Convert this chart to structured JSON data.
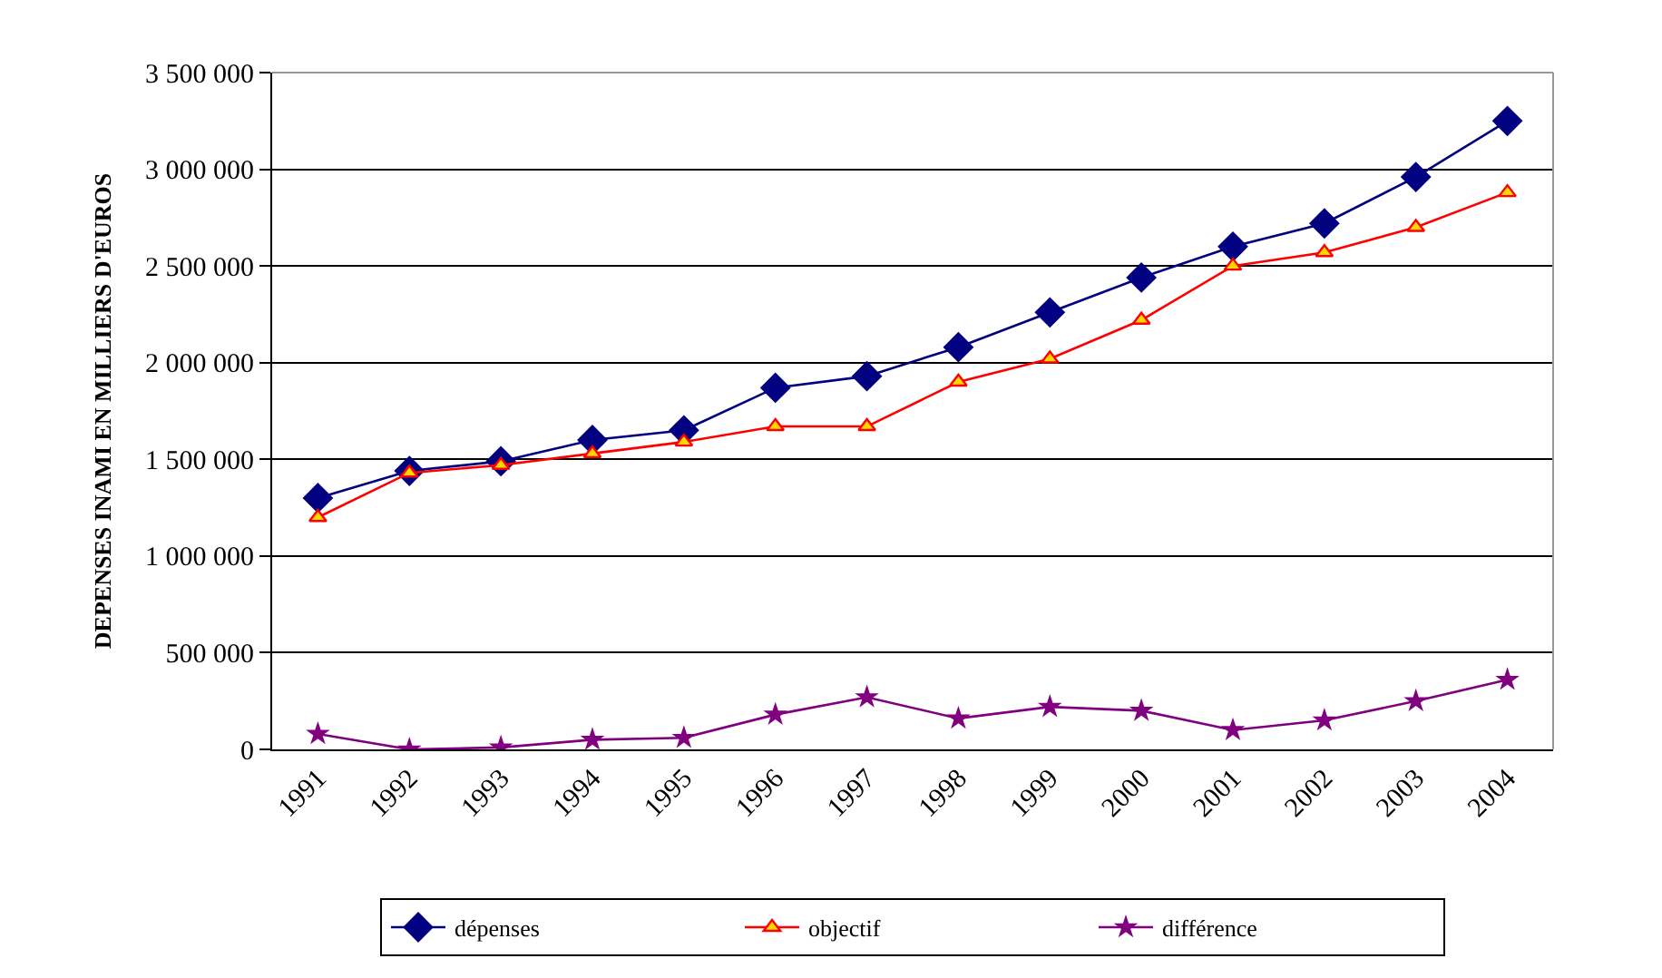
{
  "chart_data": {
    "type": "line",
    "ylabel": "DEPENSES INAMI EN MILLIERS D'EUROS",
    "categories": [
      "1991",
      "1992",
      "1993",
      "1994",
      "1995",
      "1996",
      "1997",
      "1998",
      "1999",
      "2000",
      "2001",
      "2002",
      "2003",
      "2004"
    ],
    "series": [
      {
        "name": "dépenses",
        "color": "#000080",
        "marker": "diamond",
        "values": [
          1300000,
          1440000,
          1490000,
          1600000,
          1650000,
          1870000,
          1930000,
          2080000,
          2260000,
          2440000,
          2600000,
          2720000,
          2960000,
          3250000
        ]
      },
      {
        "name": "objectif",
        "color": "#ff0000",
        "marker": "triangle",
        "values": [
          1200000,
          1430000,
          1470000,
          1530000,
          1590000,
          1670000,
          1670000,
          1900000,
          2020000,
          2220000,
          2500000,
          2570000,
          2700000,
          2880000
        ]
      },
      {
        "name": "différence",
        "color": "#800080",
        "marker": "star",
        "values": [
          80000,
          0,
          10000,
          50000,
          60000,
          180000,
          270000,
          160000,
          220000,
          200000,
          100000,
          150000,
          250000,
          360000
        ]
      }
    ],
    "ylim": [
      0,
      3500000
    ],
    "yticks": [
      {
        "value": 0,
        "label": "0"
      },
      {
        "value": 500000,
        "label": "500 000"
      },
      {
        "value": 1000000,
        "label": "1 000 000"
      },
      {
        "value": 1500000,
        "label": "1 500 000"
      },
      {
        "value": 2000000,
        "label": "2 000 000"
      },
      {
        "value": 2500000,
        "label": "2 500 000"
      },
      {
        "value": 3000000,
        "label": "3 000 000"
      },
      {
        "value": 3500000,
        "label": "3 500 000"
      }
    ],
    "grid": "y",
    "legend": "bottom",
    "line_style": "solid"
  }
}
